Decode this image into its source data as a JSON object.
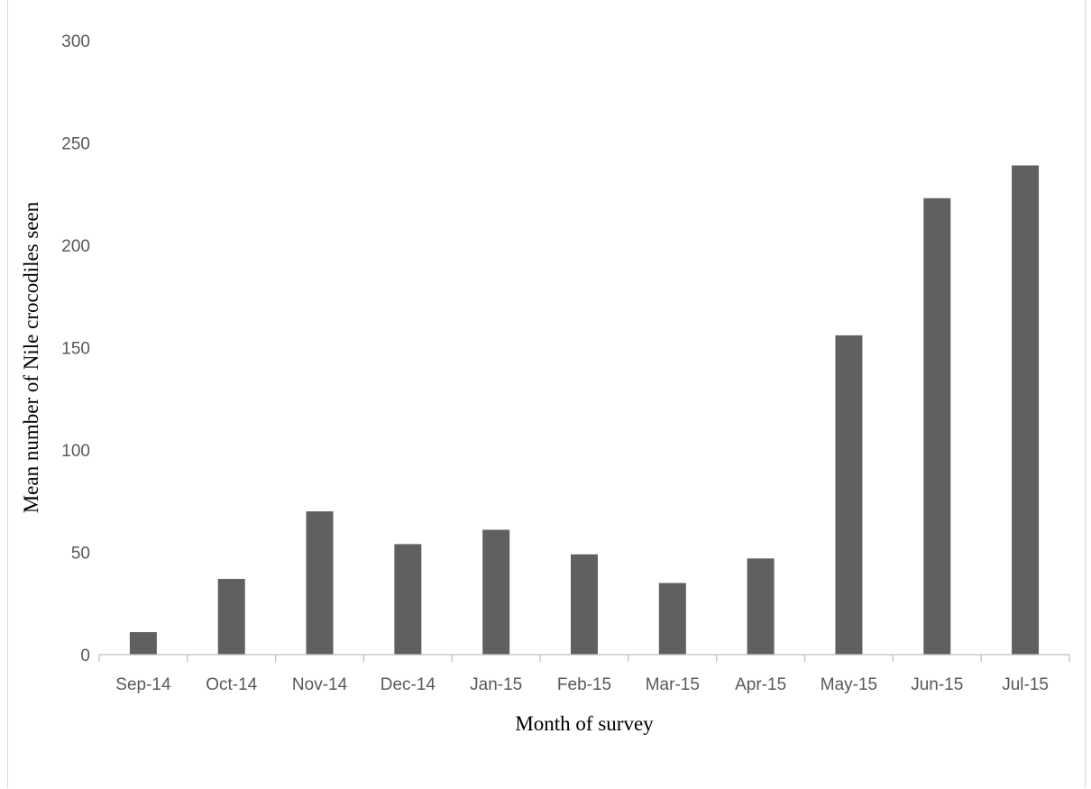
{
  "chart_data": {
    "type": "bar",
    "title": "",
    "xlabel": "Month of survey",
    "ylabel": "Mean number of Nile crocodiles seen",
    "categories": [
      "Sep-14",
      "Oct-14",
      "Nov-14",
      "Dec-14",
      "Jan-15",
      "Feb-15",
      "Mar-15",
      "Apr-15",
      "May-15",
      "Jun-15",
      "Jul-15"
    ],
    "values": [
      11,
      37,
      70,
      54,
      61,
      49,
      35,
      47,
      156,
      223,
      239
    ],
    "ylim": [
      0,
      300
    ],
    "yticks": [
      "0",
      "50",
      "100",
      "150",
      "200",
      "250",
      "300"
    ],
    "grid": false,
    "legend": "none",
    "colors": {
      "bar": "#606060",
      "axis": "#bfbfbf",
      "tick_text": "#595959",
      "title_text": "#000000"
    }
  }
}
